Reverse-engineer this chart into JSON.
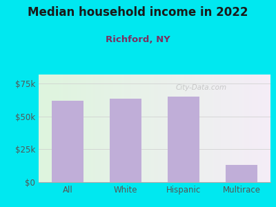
{
  "title": "Median household income in 2022",
  "subtitle": "Richford, NY",
  "categories": [
    "All",
    "White",
    "Hispanic",
    "Multirace"
  ],
  "values": [
    62000,
    63500,
    65000,
    13000
  ],
  "bar_color": "#c0aed8",
  "title_color": "#1a1a1a",
  "subtitle_color": "#7b3060",
  "tick_label_color": "#555555",
  "background_outer": "#00e8f0",
  "yticks": [
    0,
    25000,
    50000,
    75000
  ],
  "ytick_labels": [
    "$0",
    "$25k",
    "$50k",
    "$75k"
  ],
  "ylim": [
    0,
    82000
  ],
  "watermark": "City-Data.com"
}
